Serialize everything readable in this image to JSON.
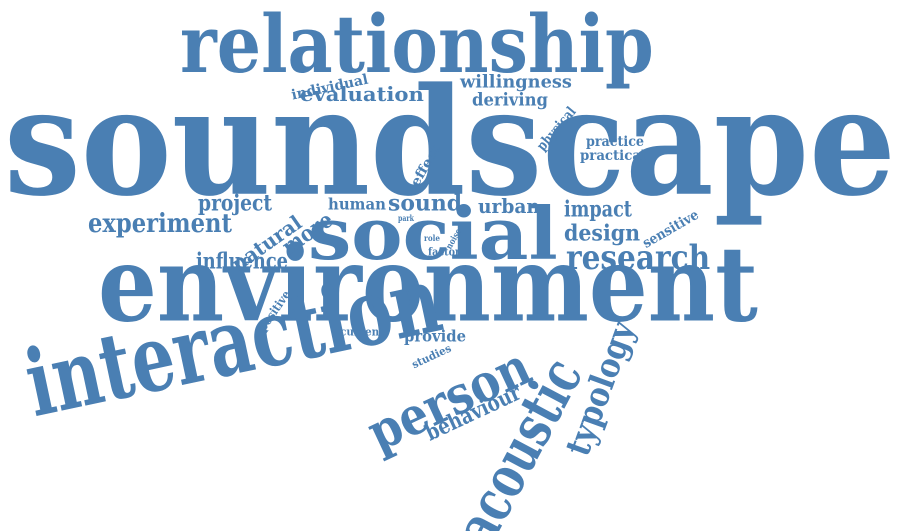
{
  "word_cloud": {
    "color": "#4a7fb3",
    "words": [
      {
        "id": "soundscape",
        "text": "soundscape"
      },
      {
        "id": "environment",
        "text": "environment"
      },
      {
        "id": "relationship",
        "text": "relationship"
      },
      {
        "id": "interaction",
        "text": "interaction"
      },
      {
        "id": "social",
        "text": "social"
      },
      {
        "id": "acoustic",
        "text": "acoustic"
      },
      {
        "id": "person",
        "text": "person"
      },
      {
        "id": "typology",
        "text": "typology"
      },
      {
        "id": "research",
        "text": "research"
      },
      {
        "id": "experiment",
        "text": "experiment"
      },
      {
        "id": "evaluation",
        "text": "evaluation"
      },
      {
        "id": "behaviour",
        "text": "behaviour"
      },
      {
        "id": "impact",
        "text": "impact"
      },
      {
        "id": "design",
        "text": "design"
      },
      {
        "id": "sound",
        "text": "sound"
      },
      {
        "id": "urban",
        "text": "urban"
      },
      {
        "id": "influence",
        "text": "influence"
      },
      {
        "id": "natural",
        "text": "natural"
      },
      {
        "id": "more",
        "text": "more"
      },
      {
        "id": "project",
        "text": "project"
      },
      {
        "id": "human",
        "text": "human"
      },
      {
        "id": "willingness",
        "text": "willingness"
      },
      {
        "id": "deriving",
        "text": "deriving"
      },
      {
        "id": "individual",
        "text": "individual"
      },
      {
        "id": "physical",
        "text": "physical"
      },
      {
        "id": "practice",
        "text": "practice"
      },
      {
        "id": "practical",
        "text": "practical"
      },
      {
        "id": "effect",
        "text": "effect"
      },
      {
        "id": "sensitive",
        "text": "sensitive"
      },
      {
        "id": "provide",
        "text": "provide"
      },
      {
        "id": "studies",
        "text": "studies"
      },
      {
        "id": "current",
        "text": "current"
      },
      {
        "id": "positive",
        "text": "positive"
      },
      {
        "id": "factor",
        "text": "factor"
      },
      {
        "id": "noise",
        "text": "noise"
      },
      {
        "id": "role",
        "text": "role"
      },
      {
        "id": "park",
        "text": "park"
      }
    ]
  }
}
